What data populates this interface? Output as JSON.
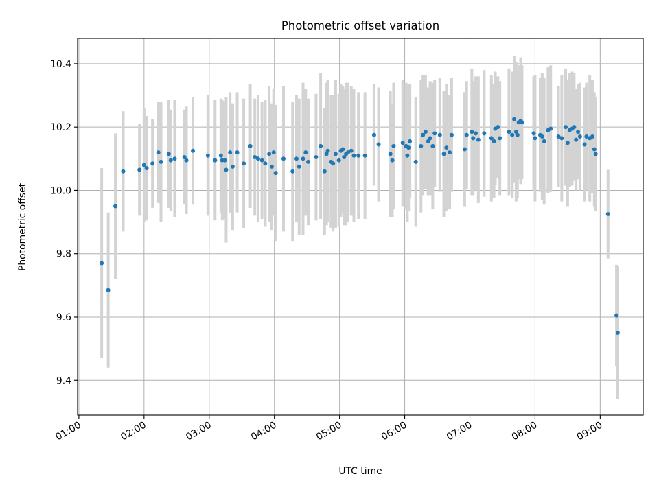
{
  "chart_data": {
    "type": "scatter",
    "title": "Photometric offset variation",
    "xlabel": "UTC time",
    "ylabel": "Photometric offset",
    "x_unit": "hours UTC",
    "xlim": [
      0.98,
      9.66
    ],
    "ylim": [
      9.29,
      10.48
    ],
    "x_ticks": [
      1,
      2,
      3,
      4,
      5,
      6,
      7,
      8,
      9
    ],
    "x_tick_labels": [
      "01:00",
      "02:00",
      "03:00",
      "04:00",
      "05:00",
      "06:00",
      "07:00",
      "08:00",
      "09:00"
    ],
    "y_ticks": [
      9.4,
      9.6,
      9.8,
      10.0,
      10.2,
      10.4
    ],
    "y_tick_labels": [
      "9.4",
      "9.6",
      "9.8",
      "10.0",
      "10.2",
      "10.4"
    ],
    "grid": true,
    "legend": "none",
    "marker_color": "#1f77b4",
    "errorbar_color": "#d3d3d3",
    "series": [
      {
        "x": [
          1.35,
          1.45,
          1.56,
          1.68,
          1.93,
          2.0,
          2.04,
          2.13,
          2.22,
          2.26,
          2.38,
          2.41,
          2.47,
          2.62,
          2.65,
          2.75,
          2.98,
          3.09,
          3.18,
          3.2,
          3.24,
          3.26,
          3.32,
          3.36,
          3.43,
          3.53,
          3.63,
          3.7,
          3.75,
          3.81,
          3.86,
          3.92,
          3.96,
          3.99,
          4.02,
          4.14,
          4.28,
          4.34,
          4.38,
          4.44,
          4.48,
          4.52,
          4.64,
          4.71,
          4.77,
          4.8,
          4.82,
          4.87,
          4.9,
          4.94,
          4.99,
          5.02,
          5.05,
          5.07,
          5.1,
          5.13,
          5.18,
          5.22,
          5.29,
          5.39,
          5.53,
          5.6,
          5.78,
          5.81,
          5.83,
          5.97,
          6.02,
          6.04,
          6.06,
          6.08,
          6.17,
          6.25,
          6.28,
          6.32,
          6.36,
          6.39,
          6.43,
          6.46,
          6.54,
          6.6,
          6.64,
          6.69,
          6.72,
          6.92,
          6.95,
          7.03,
          7.05,
          7.09,
          7.13,
          7.22,
          7.33,
          7.37,
          7.39,
          7.43,
          7.46,
          7.6,
          7.65,
          7.68,
          7.71,
          7.73,
          7.75,
          7.78,
          7.8,
          7.98,
          8.0,
          8.08,
          8.11,
          8.14,
          8.2,
          8.24,
          8.36,
          8.41,
          8.47,
          8.5,
          8.53,
          8.57,
          8.6,
          8.63,
          8.66,
          8.69,
          8.76,
          8.79,
          8.84,
          8.88,
          8.91,
          8.93,
          9.12,
          9.25,
          9.27
        ],
        "y": [
          9.77,
          9.685,
          9.95,
          10.06,
          10.065,
          10.08,
          10.07,
          10.085,
          10.12,
          10.09,
          10.115,
          10.095,
          10.1,
          10.105,
          10.095,
          10.125,
          10.11,
          10.095,
          10.11,
          10.095,
          10.095,
          10.065,
          10.12,
          10.075,
          10.12,
          10.085,
          10.14,
          10.105,
          10.1,
          10.095,
          10.085,
          10.115,
          10.075,
          10.12,
          10.055,
          10.1,
          10.06,
          10.1,
          10.075,
          10.1,
          10.12,
          10.09,
          10.105,
          10.14,
          10.06,
          10.115,
          10.125,
          10.09,
          10.085,
          10.115,
          10.095,
          10.125,
          10.13,
          10.105,
          10.115,
          10.12,
          10.125,
          10.11,
          10.11,
          10.11,
          10.175,
          10.145,
          10.115,
          10.095,
          10.14,
          10.15,
          10.14,
          10.11,
          10.135,
          10.155,
          10.09,
          10.14,
          10.175,
          10.185,
          10.155,
          10.165,
          10.14,
          10.18,
          10.175,
          10.115,
          10.135,
          10.12,
          10.175,
          10.13,
          10.175,
          10.185,
          10.165,
          10.18,
          10.16,
          10.18,
          10.165,
          10.155,
          10.195,
          10.2,
          10.165,
          10.185,
          10.175,
          10.225,
          10.185,
          10.175,
          10.215,
          10.22,
          10.215,
          10.18,
          10.165,
          10.175,
          10.17,
          10.155,
          10.19,
          10.195,
          10.17,
          10.165,
          10.2,
          10.15,
          10.19,
          10.195,
          10.2,
          10.16,
          10.185,
          10.17,
          10.145,
          10.17,
          10.165,
          10.17,
          10.13,
          10.115,
          9.925,
          9.605,
          9.55
        ],
        "yerr": [
          0.3,
          0.245,
          0.23,
          0.19,
          0.145,
          0.18,
          0.165,
          0.14,
          0.16,
          0.19,
          0.17,
          0.16,
          0.185,
          0.15,
          0.17,
          0.17,
          0.19,
          0.19,
          0.18,
          0.19,
          0.185,
          0.23,
          0.19,
          0.2,
          0.19,
          0.205,
          0.195,
          0.185,
          0.2,
          0.185,
          0.2,
          0.215,
          0.2,
          0.2,
          0.215,
          0.23,
          0.22,
          0.2,
          0.215,
          0.24,
          0.2,
          0.2,
          0.2,
          0.23,
          0.2,
          0.225,
          0.225,
          0.21,
          0.215,
          0.235,
          0.21,
          0.21,
          0.2,
          0.215,
          0.225,
          0.22,
          0.205,
          0.21,
          0.2,
          0.2,
          0.16,
          0.18,
          0.2,
          0.18,
          0.2,
          0.2,
          0.2,
          0.21,
          0.2,
          0.18,
          0.205,
          0.21,
          0.19,
          0.18,
          0.17,
          0.18,
          0.2,
          0.17,
          0.18,
          0.2,
          0.2,
          0.18,
          0.18,
          0.18,
          0.17,
          0.2,
          0.18,
          0.18,
          0.2,
          0.2,
          0.2,
          0.18,
          0.18,
          0.16,
          0.18,
          0.2,
          0.2,
          0.2,
          0.22,
          0.2,
          0.18,
          0.2,
          0.18,
          0.18,
          0.2,
          0.18,
          0.2,
          0.2,
          0.2,
          0.2,
          0.16,
          0.2,
          0.185,
          0.2,
          0.18,
          0.18,
          0.17,
          0.16,
          0.15,
          0.17,
          0.18,
          0.17,
          0.2,
          0.18,
          0.18,
          0.18,
          0.14,
          0.16,
          0.21
        ]
      }
    ]
  }
}
